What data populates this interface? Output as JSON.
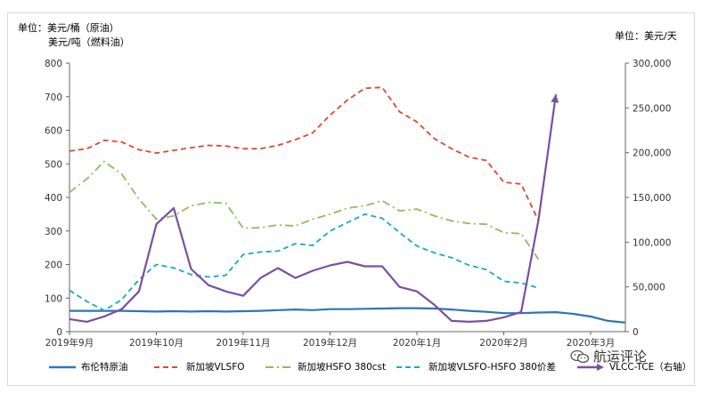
{
  "units": {
    "left_line1": "单位：美元/桶（原油）",
    "left_line2": "美元/吨（燃料油）",
    "right": "单位：美元/天"
  },
  "watermark": "航运评论",
  "chart_data": {
    "type": "line",
    "x_ticks": [
      "2019年9月",
      "2019年10月",
      "2019年11月",
      "2019年12月",
      "2020年1月",
      "2020年2月",
      "2020年3月"
    ],
    "y_left": {
      "ticks": [
        "0",
        "100",
        "200",
        "300",
        "400",
        "500",
        "600",
        "700",
        "800"
      ],
      "lim": [
        0,
        800
      ]
    },
    "y_right": {
      "ticks": [
        "0",
        "50,000",
        "100,000",
        "150,000",
        "200,000",
        "250,000",
        "300,000"
      ],
      "lim": [
        0,
        300000
      ]
    },
    "x": [
      0,
      1,
      2,
      3,
      4,
      5,
      6,
      7,
      8,
      9,
      10,
      11,
      12,
      13,
      14,
      15,
      16,
      17,
      18,
      19,
      20,
      21,
      22,
      23,
      24,
      25,
      26,
      27,
      28,
      29,
      30,
      31,
      32
    ],
    "series": [
      {
        "name": "布伦特原油",
        "axis": "left",
        "color": "#2e75b6",
        "style": "solid",
        "values": [
          62,
          62,
          62,
          62,
          61,
          60,
          61,
          60,
          61,
          60,
          61,
          62,
          64,
          66,
          64,
          67,
          67,
          68,
          69,
          70,
          70,
          69,
          66,
          62,
          59,
          55,
          55,
          57,
          58,
          53,
          45,
          32,
          27
        ]
      },
      {
        "name": "新加坡VLSFO",
        "axis": "left",
        "color": "#e0472f",
        "style": "dash",
        "values": [
          538,
          545,
          570,
          565,
          542,
          532,
          540,
          548,
          555,
          553,
          545,
          545,
          555,
          572,
          592,
          645,
          690,
          725,
          728,
          655,
          625,
          575,
          545,
          520,
          510,
          445,
          440,
          330,
          null,
          null,
          null,
          null,
          null
        ]
      },
      {
        "name": "新加坡HSFO 380cst",
        "axis": "left",
        "color": "#8bbf5a",
        "style": "dashdot",
        "values": [
          415,
          455,
          507,
          470,
          395,
          335,
          345,
          375,
          385,
          383,
          308,
          310,
          318,
          315,
          335,
          350,
          368,
          375,
          390,
          360,
          365,
          345,
          330,
          322,
          320,
          295,
          292,
          215,
          null,
          null,
          null,
          null,
          null
        ]
      },
      {
        "name": "新加坡VLSFO-HSFO 380价差",
        "axis": "left",
        "color": "#17a9c6",
        "style": "dash",
        "values": [
          123,
          90,
          63,
          95,
          155,
          200,
          190,
          170,
          163,
          168,
          230,
          237,
          240,
          262,
          257,
          300,
          325,
          350,
          338,
          295,
          255,
          235,
          220,
          198,
          185,
          150,
          145,
          130,
          null,
          null,
          null,
          null,
          null
        ]
      },
      {
        "name": "VLCC-TCE（右轴）",
        "axis": "right",
        "color": "#7a4fa3",
        "style": "solid",
        "values": [
          14000,
          11000,
          17000,
          25000,
          45000,
          120000,
          138000,
          70000,
          52000,
          45000,
          40000,
          60000,
          71000,
          60000,
          68000,
          74000,
          78000,
          73000,
          73000,
          50000,
          45000,
          30000,
          12000,
          11000,
          12000,
          16000,
          22000,
          125000,
          265000,
          null,
          null,
          null,
          null
        ]
      }
    ]
  }
}
